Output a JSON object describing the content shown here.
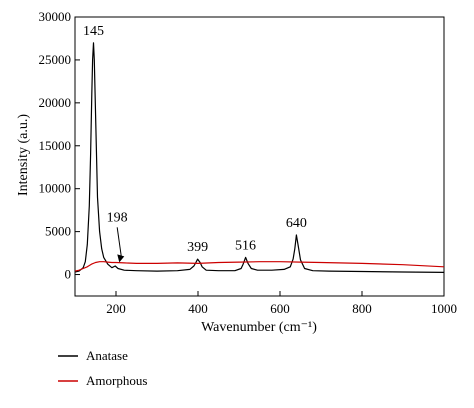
{
  "chart_data": {
    "type": "line",
    "xlabel": "Wavenumber (cm⁻¹)",
    "ylabel": "Intensity (a.u.)",
    "xlim": [
      100,
      1000
    ],
    "ylim": [
      -2500,
      30000
    ],
    "xticks": [
      200,
      400,
      600,
      800,
      1000
    ],
    "yticks": [
      0,
      5000,
      10000,
      15000,
      20000,
      25000,
      30000
    ],
    "grid": false,
    "legend_position": "bottom-left",
    "annotations": [
      {
        "text": "145",
        "x": 145,
        "y": 27000
      },
      {
        "text": "198",
        "x": 198,
        "y": 1300,
        "arrow": true
      },
      {
        "text": "399",
        "x": 399,
        "y": 1800
      },
      {
        "text": "516",
        "x": 516,
        "y": 2000
      },
      {
        "text": "640",
        "x": 640,
        "y": 4600
      }
    ],
    "series": [
      {
        "name": "Anatase",
        "color": "#000000",
        "x": [
          100,
          110,
          120,
          125,
          130,
          135,
          138,
          141,
          143,
          145,
          147,
          149,
          152,
          155,
          160,
          165,
          170,
          180,
          190,
          198,
          205,
          220,
          250,
          300,
          350,
          380,
          390,
          395,
          399,
          405,
          410,
          420,
          450,
          490,
          505,
          510,
          516,
          522,
          530,
          545,
          580,
          610,
          625,
          632,
          636,
          640,
          644,
          650,
          660,
          680,
          720,
          800,
          900,
          1000
        ],
        "y": [
          300,
          400,
          800,
          1500,
          3500,
          8000,
          14000,
          21000,
          25000,
          27000,
          25000,
          21000,
          15000,
          9000,
          5000,
          3000,
          2000,
          1200,
          800,
          1000,
          700,
          500,
          450,
          400,
          450,
          600,
          1000,
          1400,
          1800,
          1400,
          900,
          500,
          450,
          450,
          700,
          1200,
          2000,
          1300,
          700,
          500,
          500,
          600,
          900,
          1800,
          3000,
          4600,
          3500,
          1700,
          700,
          450,
          400,
          350,
          300,
          250
        ]
      },
      {
        "name": "Amorphous",
        "color": "#cc0000",
        "x": [
          100,
          110,
          120,
          130,
          140,
          150,
          160,
          170,
          180,
          190,
          200,
          220,
          250,
          300,
          350,
          400,
          450,
          500,
          550,
          600,
          650,
          700,
          800,
          900,
          1000
        ],
        "y": [
          400,
          500,
          700,
          900,
          1200,
          1400,
          1500,
          1500,
          1450,
          1400,
          1400,
          1350,
          1300,
          1300,
          1350,
          1300,
          1400,
          1450,
          1500,
          1500,
          1450,
          1400,
          1300,
          1150,
          900
        ]
      }
    ]
  }
}
